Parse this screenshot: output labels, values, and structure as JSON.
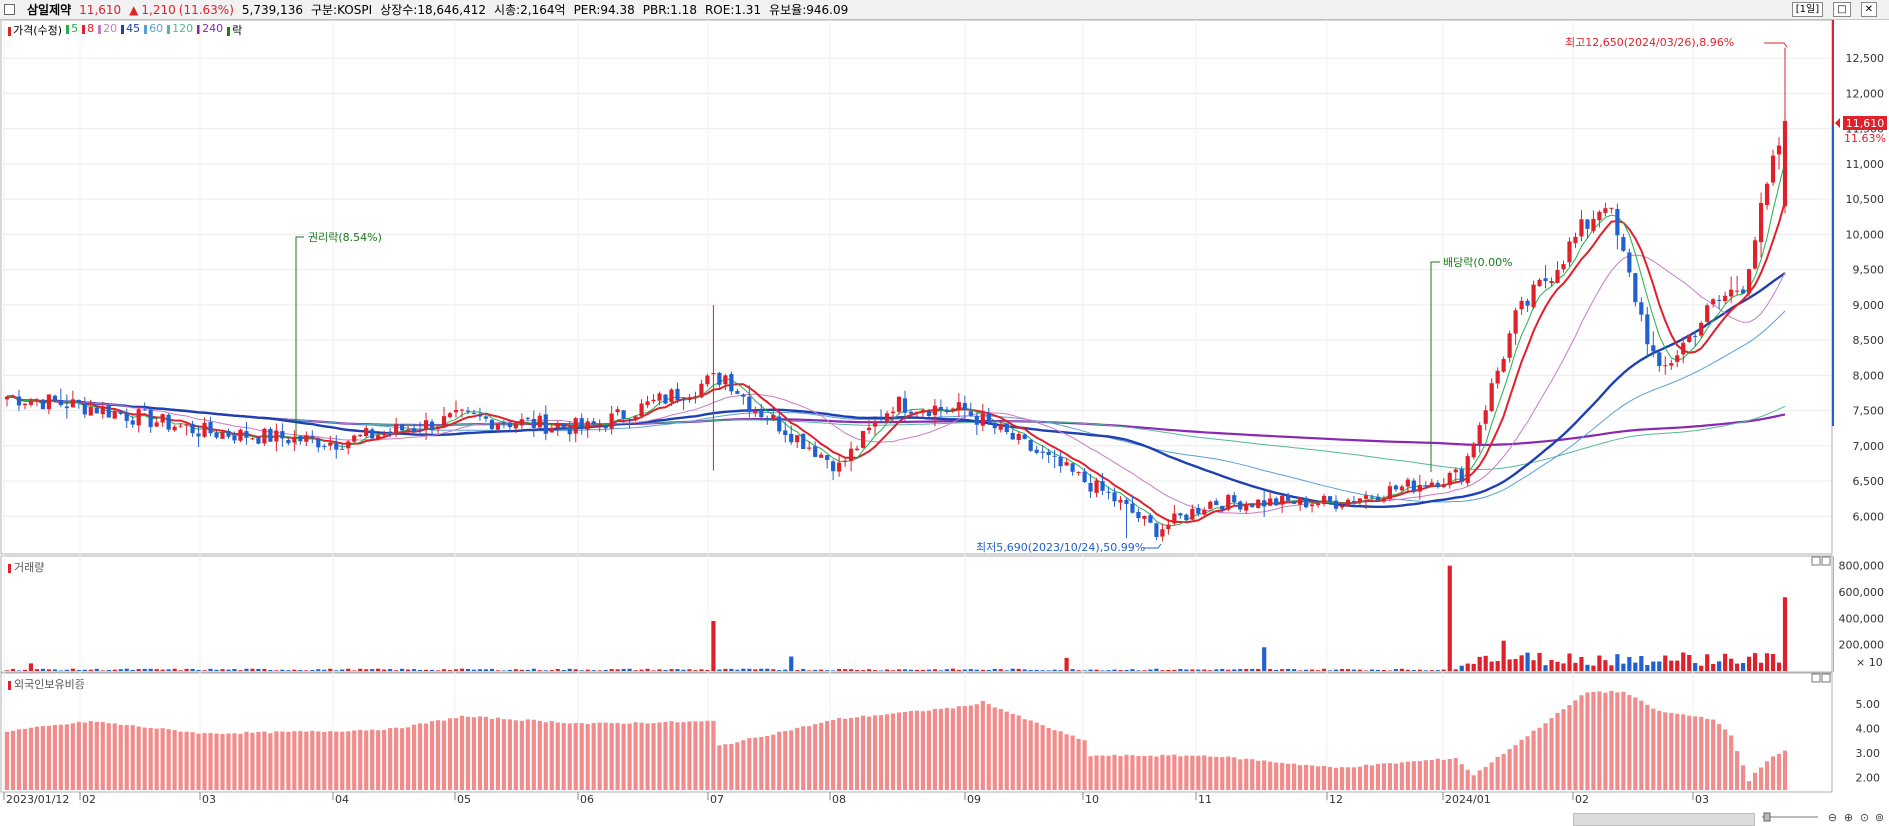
{
  "header": {
    "name": "삼일제약",
    "price": "11,610",
    "change_arrow": "▲",
    "change": "1,210",
    "change_pct": "(11.63%)",
    "volume": "5,739,136",
    "market": "구분:KOSPI",
    "listed": "상장수:18,646,412",
    "mktcap": "시총:2,164억",
    "per": "PER:94.38",
    "pbr": "PBR:1.18",
    "roe": "ROE:1.31",
    "float": "유보율:946.09",
    "period": "[1일]"
  },
  "legend": {
    "price": "가격(수정)",
    "ma5": "5",
    "ma8": "8",
    "ma20": "20",
    "ma45": "45",
    "ma60": "60",
    "ma120": "120",
    "ma240": "240",
    "ex": "락"
  },
  "colors": {
    "up": "#e0202a",
    "down": "#2060d0",
    "ma5": "#22b14c",
    "ma8": "#e0202a",
    "ma20": "#c87bc8",
    "ma45": "#1e40b0",
    "ma60": "#5aa0d8",
    "ma120": "#52b89a",
    "ma240": "#8a28b0",
    "foreign": "#f28c8c"
  },
  "chart_data": [
    {
      "type": "candlestick",
      "title": "가격(수정)",
      "y_ticks": [
        "12,500",
        "12,000",
        "11,500",
        "11,000",
        "10,500",
        "10,000",
        "9,500",
        "9,000",
        "8,500",
        "8,000",
        "7,500",
        "7,000",
        "6,500",
        "6,000"
      ],
      "ylim": [
        5550,
        12900
      ],
      "x_ticks": [
        "2023/01/12",
        "02",
        "03",
        "04",
        "05",
        "06",
        "07",
        "08",
        "09",
        "10",
        "11",
        "12",
        "2024/01",
        "02",
        "03"
      ],
      "keypoints": [
        [
          "2023/01/12",
          7700
        ],
        [
          "02",
          7550
        ],
        [
          "03",
          7200
        ],
        [
          "04",
          7050
        ],
        [
          "05",
          7400
        ],
        [
          "06",
          7250
        ],
        [
          "07",
          8000
        ],
        [
          "07",
          7600
        ],
        [
          "08",
          6700
        ],
        [
          "08",
          7600
        ],
        [
          "09",
          7500
        ],
        [
          "10",
          6300
        ],
        [
          "10",
          5800
        ],
        [
          "11",
          6200
        ],
        [
          "12",
          6200
        ],
        [
          "2024/01",
          6600
        ],
        [
          "2024/01",
          8800
        ],
        [
          "02",
          10500
        ],
        [
          "02",
          8000
        ],
        [
          "03",
          9000
        ],
        [
          "03",
          9300
        ],
        [
          "03",
          11610
        ]
      ],
      "last_price": "11,610",
      "last_pct": "11.63%",
      "annotations": {
        "high": "최고12,650(2024/03/26),8.96%",
        "low": "최저5,690(2023/10/24),50.99%",
        "rights": "권리락(8.54%)",
        "dividend": "배당락(0.00%"
      },
      "moving_averages": [
        "5",
        "8",
        "20",
        "45",
        "60",
        "120",
        "240"
      ]
    },
    {
      "type": "bar",
      "title": "거래량",
      "y_ticks": [
        "800,000",
        "600,000",
        "400,000",
        "200,000"
      ],
      "unit": "× 10",
      "ylim": [
        0,
        820000
      ]
    },
    {
      "type": "bar",
      "title": "외국인보유비중",
      "y_ticks": [
        "5.00",
        "4.00",
        "3.00",
        "2.00"
      ],
      "ylim": [
        1.5,
        5.9
      ]
    }
  ]
}
